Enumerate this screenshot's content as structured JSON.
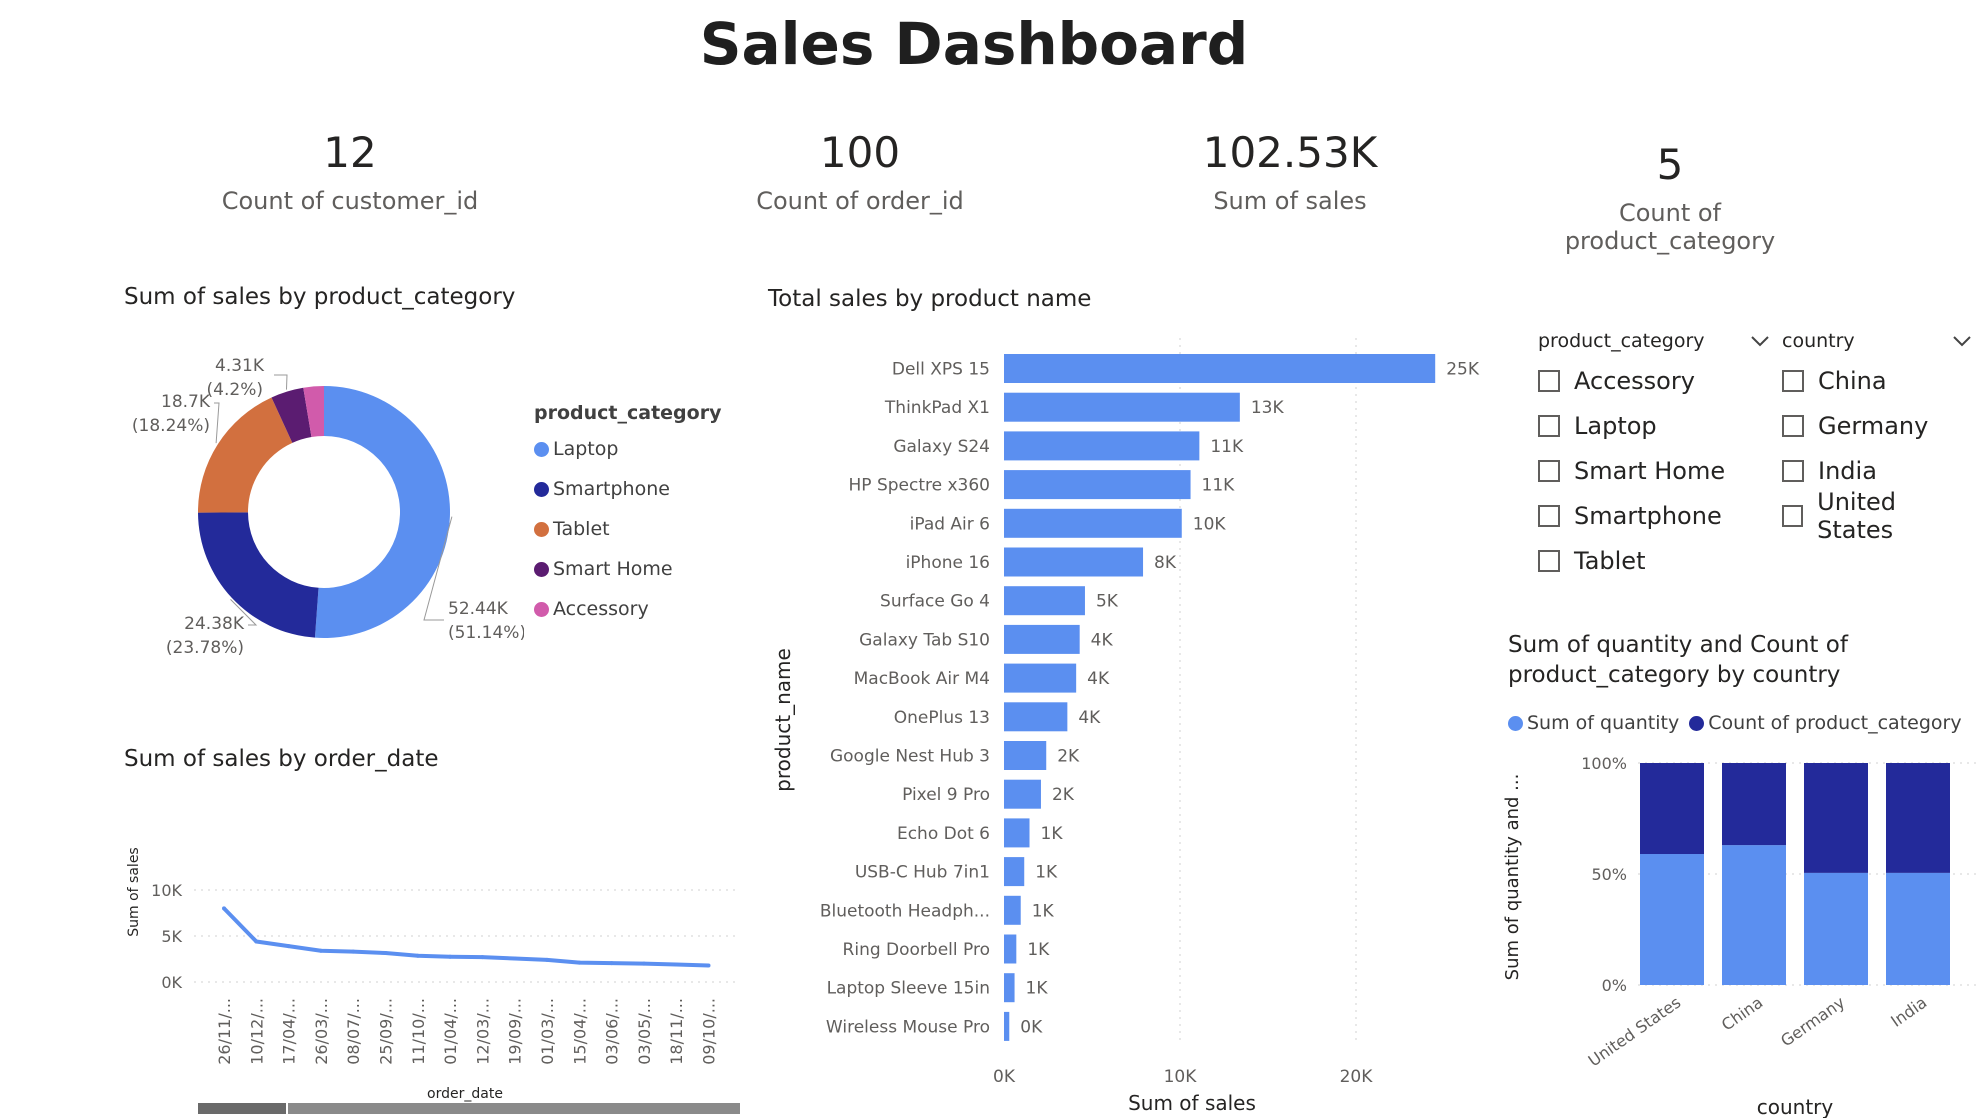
{
  "page_title": "Sales Dashboard",
  "kpis": [
    {
      "value": "12",
      "label": "Count of customer_id"
    },
    {
      "value": "100",
      "label": "Count of order_id"
    },
    {
      "value": "102.53K",
      "label": "Sum of sales"
    },
    {
      "value": "5",
      "label": "Count of product_category"
    }
  ],
  "colors": {
    "blue": "#5b8ff0",
    "navy": "#232a9a",
    "orange": "#d2703f",
    "purple": "#5b1c71",
    "pink": "#d15bab"
  },
  "icons": {
    "dropdown": "chevron-down-icon"
  },
  "slicers": {
    "product_category": {
      "title": "product_category",
      "items": [
        "Accessory",
        "Laptop",
        "Smart Home",
        "Smartphone",
        "Tablet"
      ]
    },
    "country": {
      "title": "country",
      "items": [
        "China",
        "Germany",
        "India",
        "United States"
      ]
    }
  },
  "chart_data": [
    {
      "type": "pie",
      "title": "Sum of sales by product_category",
      "legend_title": "product_category",
      "legend_position": "right",
      "slices": [
        {
          "name": "Laptop",
          "value": 52.44,
          "label": "52.44K",
          "pct": "(51.14%)",
          "color": "#5b8ff0"
        },
        {
          "name": "Smartphone",
          "value": 24.38,
          "label": "24.38K",
          "pct": "(23.78%)",
          "color": "#232a9a"
        },
        {
          "name": "Tablet",
          "value": 18.7,
          "label": "18.7K",
          "pct": "(18.24%)",
          "color": "#d2703f"
        },
        {
          "name": "Smart Home",
          "value": 4.31,
          "label": "4.31K",
          "pct": "(4.2%)",
          "color": "#5b1c71"
        },
        {
          "name": "Accessory",
          "value": 2.7,
          "label": "",
          "pct": "",
          "color": "#d15bab"
        }
      ]
    },
    {
      "type": "bar",
      "orientation": "horizontal",
      "title": "Total sales by product name",
      "xlabel": "Sum of sales",
      "ylabel": "product_name",
      "xlim": [
        0,
        25000
      ],
      "xticks": [
        0,
        10000,
        20000
      ],
      "xtick_labels": [
        "0K",
        "10K",
        "20K"
      ],
      "categories": [
        "Dell XPS 15",
        "ThinkPad X1",
        "Galaxy S24",
        "HP Spectre x360",
        "iPad Air 6",
        "iPhone 16",
        "Surface Go 4",
        "Galaxy Tab S10",
        "MacBook Air M4",
        "OnePlus 13",
        "Google Nest Hub 3",
        "Pixel 9 Pro",
        "Echo Dot 6",
        "USB-C Hub 7in1",
        "Bluetooth Headph...",
        "Ring Doorbell Pro",
        "Laptop Sleeve 15in",
        "Wireless Mouse Pro"
      ],
      "values": [
        24500,
        13400,
        11100,
        10600,
        10100,
        7900,
        4600,
        4300,
        4100,
        3600,
        2400,
        2100,
        1450,
        1150,
        950,
        700,
        600,
        300
      ],
      "data_labels": [
        "25K",
        "13K",
        "11K",
        "11K",
        "10K",
        "8K",
        "5K",
        "4K",
        "4K",
        "4K",
        "2K",
        "2K",
        "1K",
        "1K",
        "1K",
        "1K",
        "1K",
        "0K"
      ],
      "color": "#5b8ff0"
    },
    {
      "type": "line",
      "title": "Sum of sales by order_date",
      "xlabel": "order_date",
      "ylabel": "Sum of sales",
      "ylim": [
        0,
        10000
      ],
      "yticks": [
        0,
        5000,
        10000
      ],
      "ytick_labels": [
        "0K",
        "5K",
        "10K"
      ],
      "categories": [
        "26/11/...",
        "10/12/...",
        "17/04/...",
        "26/03/...",
        "08/07/...",
        "25/09/...",
        "11/10/...",
        "01/04/...",
        "12/03/...",
        "19/09/...",
        "01/03/...",
        "15/04/...",
        "03/06/...",
        "03/05/...",
        "18/11/...",
        "09/10/..."
      ],
      "values": [
        8000,
        4400,
        3900,
        3400,
        3300,
        3150,
        2850,
        2750,
        2700,
        2550,
        2400,
        2100,
        2050,
        2000,
        1900,
        1800
      ],
      "color": "#5b8ff0"
    },
    {
      "type": "bar",
      "stacked": "percent",
      "title": "Sum of quantity and Count of product_category by country",
      "xlabel": "country",
      "ylabel": "Sum of quantity and ...",
      "ylim": [
        0,
        100
      ],
      "yticks": [
        0,
        50,
        100
      ],
      "ytick_labels": [
        "0%",
        "50%",
        "100%"
      ],
      "categories": [
        "United States",
        "China",
        "Germany",
        "India"
      ],
      "series": [
        {
          "name": "Sum of quantity",
          "values": [
            59,
            63,
            50.5,
            50.5
          ],
          "color": "#5b8ff0"
        },
        {
          "name": "Count of product_category",
          "values": [
            41,
            37,
            49.5,
            49.5
          ],
          "color": "#232a9a"
        }
      ]
    }
  ]
}
